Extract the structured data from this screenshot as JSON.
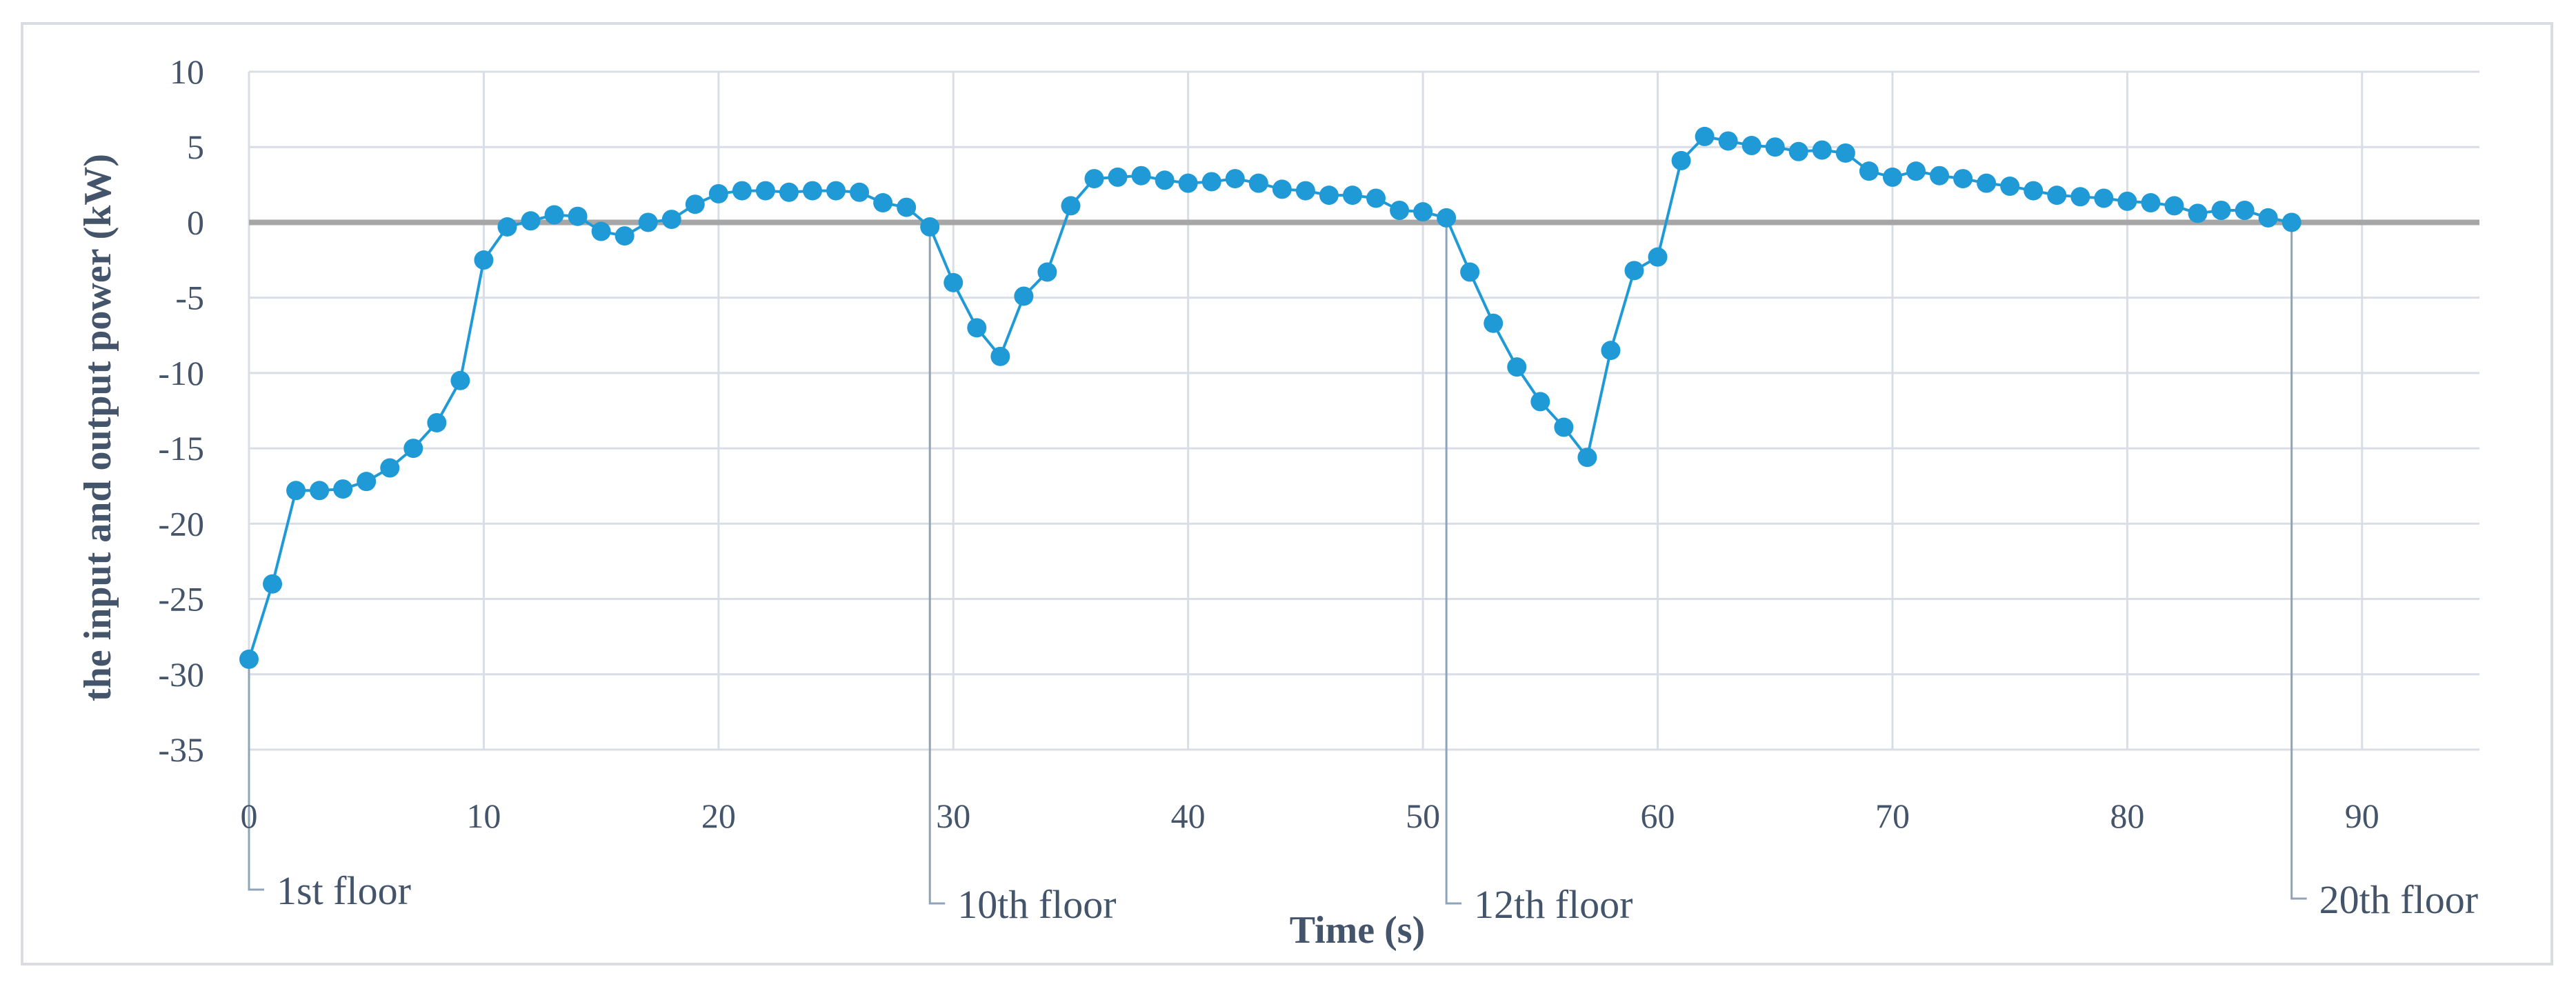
{
  "chart_data": {
    "type": "scatter",
    "title": "",
    "xlabel": "Time (s)",
    "ylabel": "the input and output power (kW)",
    "xlim": [
      0,
      95
    ],
    "ylim": [
      -35,
      10
    ],
    "xticks": [
      0,
      10,
      20,
      30,
      40,
      50,
      60,
      70,
      80,
      90
    ],
    "yticks": [
      10,
      5,
      0,
      -5,
      -10,
      -15,
      -20,
      -25,
      -30,
      -35
    ],
    "grid": true,
    "legend": "none",
    "colors": {
      "series": "#1f9ad6",
      "zero_line": "#a6a6a6",
      "grid": "#d9dee6",
      "text": "#44546a",
      "callout": "#8fa4b8"
    },
    "series": [
      {
        "x": [
          0,
          1,
          2,
          3,
          4,
          5,
          6,
          7,
          8,
          9,
          10,
          11,
          12,
          13,
          14,
          15,
          16,
          17,
          18,
          19,
          20,
          21,
          22,
          23,
          24,
          25,
          26,
          27,
          28,
          29,
          30,
          31,
          32,
          33,
          34,
          35,
          36,
          37,
          38,
          39,
          40,
          41,
          42,
          43,
          44,
          45,
          46,
          47,
          48,
          49,
          50,
          51,
          52,
          53,
          54,
          55,
          56,
          57,
          58,
          59,
          60,
          61,
          62,
          63,
          64,
          65,
          66,
          67,
          68,
          69,
          70,
          71,
          72,
          73,
          74,
          75,
          76,
          77,
          78,
          79,
          80,
          81,
          82,
          83,
          84,
          85,
          86,
          87
        ],
        "y": [
          -29,
          -24,
          -17.8,
          -17.8,
          -17.7,
          -17.2,
          -16.3,
          -15,
          -13.3,
          -10.5,
          -2.5,
          -0.3,
          0.1,
          0.5,
          0.4,
          -0.6,
          -0.9,
          0,
          0.2,
          1.2,
          1.9,
          2.1,
          2.1,
          2,
          2.1,
          2.1,
          2,
          1.3,
          1,
          -0.3,
          -4,
          -7,
          -8.9,
          -4.9,
          -3.3,
          1.1,
          2.9,
          3,
          3.1,
          2.8,
          2.6,
          2.7,
          2.9,
          2.6,
          2.2,
          2.1,
          1.8,
          1.8,
          1.6,
          0.8,
          0.7,
          0.3,
          -3.3,
          -6.7,
          -9.6,
          -11.9,
          -13.6,
          -15.6,
          -8.5,
          -3.2,
          -2.3,
          4.1,
          5.7,
          5.4,
          5.1,
          5,
          4.7,
          4.8,
          4.6,
          3.4,
          3,
          3.4,
          3.1,
          2.9,
          2.6,
          2.4,
          2.1,
          1.8,
          1.7,
          1.6,
          1.4,
          1.3,
          1.1,
          0.6,
          0.8,
          0.8,
          0.3,
          0
        ]
      }
    ],
    "annotations": [
      {
        "label": "1st floor",
        "x": 0
      },
      {
        "label": "10th floor",
        "x": 29
      },
      {
        "label": "12th floor",
        "x": 51
      },
      {
        "label": "20th floor",
        "x": 87
      }
    ]
  }
}
